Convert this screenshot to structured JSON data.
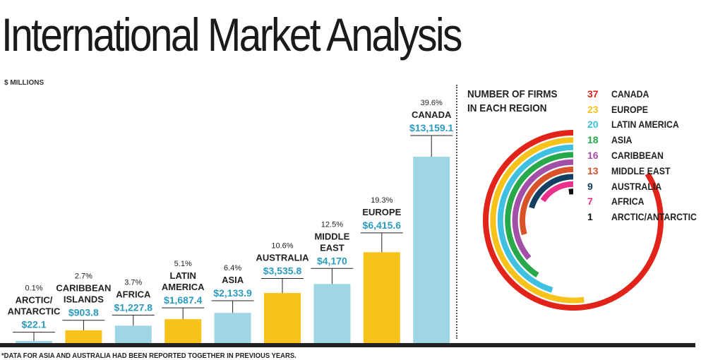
{
  "title": "International Market Analysis",
  "units": "$ MILLIONS",
  "footnote": "*DATA FOR ASIA AND AUSTRALIA HAD BEEN REPORTED TOGETHER IN PREVIOUS YEARS.",
  "legend_title": [
    "NUMBER OF FIRMS",
    "IN EACH REGION"
  ],
  "colors": {
    "blue_bar": "#9ed6e6",
    "yellow_bar": "#f7c21a",
    "value_text": "#2a9bbf"
  },
  "chart_data": [
    {
      "type": "bar",
      "ylabel": "$ MILLIONS",
      "categories": [
        {
          "lines": [
            "ARCTIC/",
            "ANTARCTIC"
          ],
          "pct": "0.1%",
          "value": 22.1,
          "value_label": "$22.1",
          "color": "blue"
        },
        {
          "lines": [
            "CARIBBEAN",
            "ISLANDS"
          ],
          "pct": "2.7%",
          "value": 903.8,
          "value_label": "$903.8",
          "color": "yellow"
        },
        {
          "lines": [
            "AFRICA"
          ],
          "pct": "3.7%",
          "value": 1227.8,
          "value_label": "$1,227.8",
          "color": "blue"
        },
        {
          "lines": [
            "LATIN",
            "AMERICA"
          ],
          "pct": "5.1%",
          "value": 1687.4,
          "value_label": "$1,687.4",
          "color": "yellow"
        },
        {
          "lines": [
            "ASIA"
          ],
          "pct": "6.4%",
          "value": 2133.9,
          "value_label": "$2,133.9",
          "color": "blue"
        },
        {
          "lines": [
            "AUSTRALIA"
          ],
          "pct": "10.6%",
          "value": 3535.8,
          "value_label": "$3,535.8",
          "color": "yellow"
        },
        {
          "lines": [
            "MIDDLE",
            "EAST"
          ],
          "pct": "12.5%",
          "value": 4170,
          "value_label": "$4,170",
          "color": "blue"
        },
        {
          "lines": [
            "EUROPE"
          ],
          "pct": "19.3%",
          "value": 6415.6,
          "value_label": "$6,415.6",
          "color": "yellow"
        },
        {
          "lines": [
            "CANADA"
          ],
          "pct": "39.6%",
          "value": 13159.1,
          "value_label": "$13,159.1",
          "color": "blue"
        }
      ]
    },
    {
      "type": "radial-bar",
      "title": "NUMBER OF FIRMS IN EACH REGION",
      "series": [
        {
          "name": "CANADA",
          "value": 37,
          "color": "#e2231a"
        },
        {
          "name": "EUROPE",
          "value": 23,
          "color": "#f7c21a"
        },
        {
          "name": "LATIN AMERICA",
          "value": 20,
          "color": "#3fc0e0"
        },
        {
          "name": "ASIA",
          "value": 18,
          "color": "#27a84a"
        },
        {
          "name": "CARIBBEAN",
          "value": 16,
          "color": "#a24fa8"
        },
        {
          "name": "MIDDLE EAST",
          "value": 13,
          "color": "#d8522a"
        },
        {
          "name": "AUSTRALIA",
          "value": 9,
          "color": "#143f63"
        },
        {
          "name": "AFRICA",
          "value": 7,
          "color": "#ec2f8a"
        },
        {
          "name": "ARCTIC/ANTARCTIC",
          "value": 1,
          "color": "#111111"
        }
      ]
    }
  ]
}
